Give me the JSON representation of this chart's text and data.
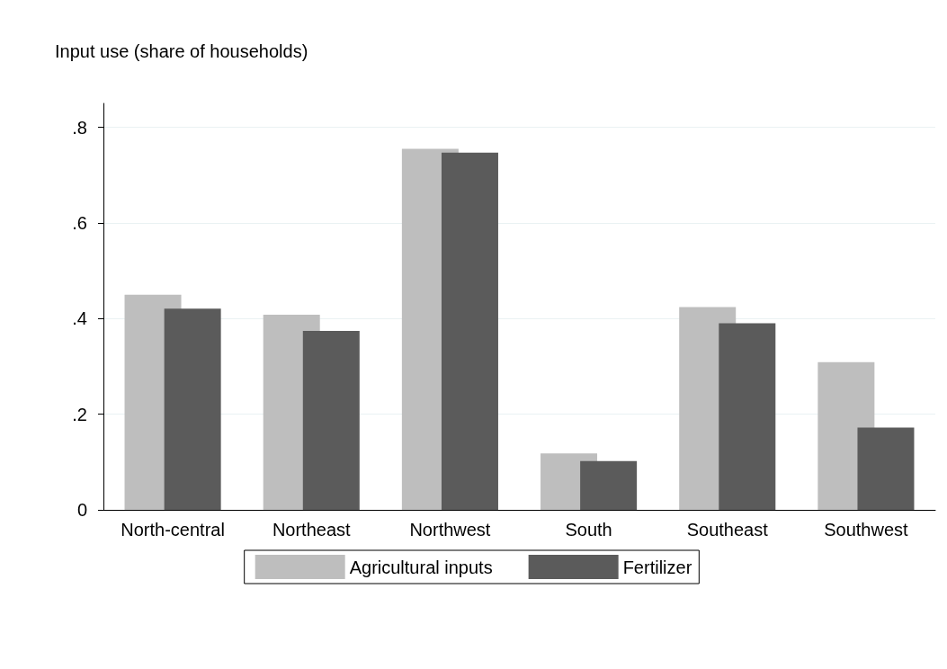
{
  "chart_data": {
    "type": "bar",
    "ylabel": "Input use (share of households)",
    "categories": [
      "North-central",
      "Northeast",
      "Northwest",
      "South",
      "Southeast",
      "Southwest"
    ],
    "series": [
      {
        "name": "Agricultural inputs",
        "color": "#bebebe",
        "values": [
          0.45,
          0.408,
          0.755,
          0.118,
          0.424,
          0.309
        ]
      },
      {
        "name": "Fertilizer",
        "color": "#5b5b5b",
        "values": [
          0.421,
          0.374,
          0.747,
          0.102,
          0.39,
          0.172
        ]
      }
    ],
    "ylim": [
      0,
      0.85
    ],
    "yticks": [
      0,
      {
        "value": 0.2,
        "label": ".2"
      },
      {
        "value": 0.4,
        "label": ".4"
      },
      {
        "value": 0.6,
        "label": ".6"
      },
      {
        "value": 0.8,
        "label": ".8"
      }
    ],
    "grid": "y",
    "legend": "bottom"
  }
}
